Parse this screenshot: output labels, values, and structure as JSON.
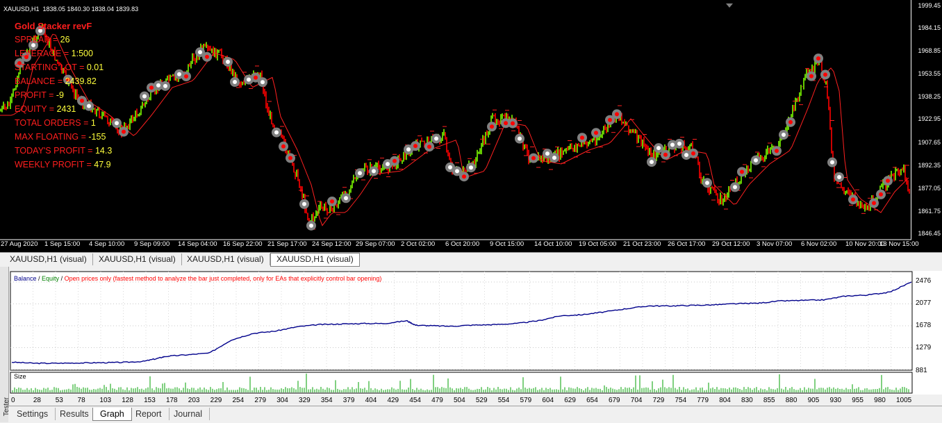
{
  "chart": {
    "symbol_header": "XAUUSD,H1  1838.05 1840.30 1838.04 1839.83",
    "price_labels": [
      "1999.45",
      "1984.15",
      "1968.85",
      "1953.55",
      "1938.25",
      "1922.95",
      "1907.65",
      "1892.35",
      "1877.05",
      "1861.75",
      "1846.45"
    ],
    "time_labels": [
      "27 Aug 2020",
      "1 Sep 15:00",
      "4 Sep 10:00",
      "9 Sep 09:00",
      "14 Sep 04:00",
      "16 Sep 22:00",
      "21 Sep 17:00",
      "24 Sep 12:00",
      "29 Sep 07:00",
      "2 Oct 02:00",
      "6 Oct 20:00",
      "9 Oct 15:00",
      "14 Oct 10:00",
      "19 Oct 05:00",
      "21 Oct 23:00",
      "26 Oct 17:00",
      "29 Oct 12:00",
      "3 Nov 07:00",
      "6 Nov 02:00",
      "10 Nov 20:00",
      "13 Nov 15:00"
    ],
    "colors": {
      "bull": "#7cfc00",
      "bear": "#ff0000",
      "marker": "#808080",
      "ma": "#ff2020"
    }
  },
  "overlay": {
    "title": "Gold Stacker revF",
    "rows": [
      {
        "label": "SPREAD = ",
        "value": "26"
      },
      {
        "label": "LEVERAGE = ",
        "value": "1:500"
      },
      {
        "label": "STARTING LOT = ",
        "value": "0.01"
      },
      {
        "label": "BALANCE = ",
        "value": "2439.82"
      },
      {
        "label": "PROFIT = ",
        "value": "-9"
      },
      {
        "label": "EQUITY = ",
        "value": "2431"
      },
      {
        "label": "TOTAL ORDERS = ",
        "value": "1"
      },
      {
        "label": "MAX FLOATING = ",
        "value": "-155"
      },
      {
        "label": "TODAY'S PROFIT = ",
        "value": "14.3"
      },
      {
        "label": "WEEKLY PROFIT = ",
        "value": "47.9"
      }
    ]
  },
  "chart_tabs": [
    {
      "label": "XAUUSD,H1 (visual)"
    },
    {
      "label": "XAUUSD,H1 (visual)"
    },
    {
      "label": "XAUUSD,H1 (visual)"
    },
    {
      "label": "XAUUSD,H1 (visual)"
    }
  ],
  "tester": {
    "side_label": "Tester",
    "legend": {
      "balance": "Balance",
      "sep1": " / ",
      "equity": "Equity",
      "sep2": " / ",
      "model": "Open prices only (fastest method to analyze the bar just completed, only for EAs that explicitly control bar opening)"
    },
    "y_labels": [
      "2476",
      "2077",
      "1678",
      "1279",
      "881"
    ],
    "size_label": "Size",
    "x_labels": [
      "0",
      "28",
      "53",
      "78",
      "103",
      "128",
      "153",
      "178",
      "203",
      "229",
      "254",
      "279",
      "304",
      "329",
      "354",
      "379",
      "404",
      "429",
      "454",
      "479",
      "504",
      "529",
      "554",
      "579",
      "604",
      "629",
      "654",
      "679",
      "704",
      "729",
      "754",
      "779",
      "804",
      "830",
      "855",
      "880",
      "905",
      "930",
      "955",
      "980",
      "1005"
    ],
    "colors": {
      "balance": "#00008b",
      "equity": "#008000",
      "model": "#ff0000",
      "size": "#00a000"
    }
  },
  "chart_data": {
    "type": "line",
    "series": [
      {
        "name": "Balance",
        "x": [
          0,
          25,
          50,
          75,
          100,
          125,
          150,
          165,
          175,
          200,
          225,
          250,
          275,
          300,
          325,
          350,
          375,
          400,
          425,
          450,
          460,
          475,
          500,
          525,
          550,
          575,
          600,
          625,
          650,
          675,
          700,
          725,
          750,
          775,
          800,
          825,
          850,
          875,
          900,
          925,
          950,
          975,
          1000,
          1025
        ],
        "values": [
          1015,
          995,
          995,
          1000,
          1005,
          1010,
          1030,
          1080,
          1120,
          1150,
          1180,
          1420,
          1540,
          1580,
          1660,
          1700,
          1710,
          1720,
          1720,
          1770,
          1690,
          1680,
          1670,
          1690,
          1700,
          1720,
          1770,
          1860,
          1880,
          1930,
          1990,
          2040,
          2040,
          2050,
          2060,
          2080,
          2090,
          2130,
          2140,
          2150,
          2220,
          2240,
          2290,
          2476
        ]
      }
    ],
    "ylim": [
      881,
      2476
    ],
    "y_ticks": [
      2476,
      2077,
      1678,
      1279,
      881
    ]
  },
  "bottom_tabs": [
    {
      "label": "Settings"
    },
    {
      "label": "Results"
    },
    {
      "label": "Graph"
    },
    {
      "label": "Report"
    },
    {
      "label": "Journal"
    }
  ]
}
